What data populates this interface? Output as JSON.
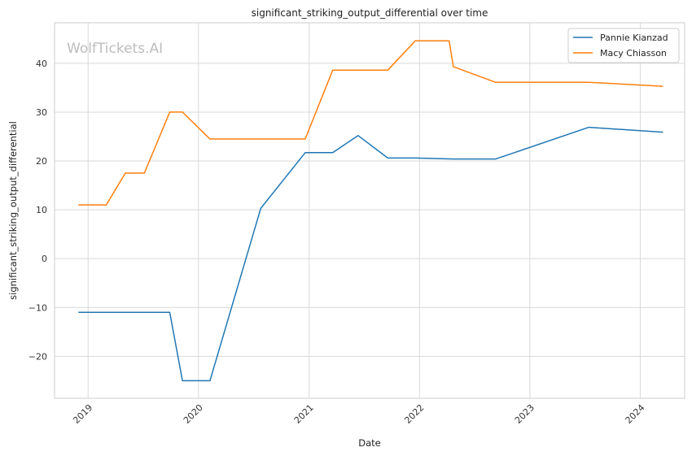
{
  "chart_data": {
    "type": "line",
    "title": "significant_striking_output_differential over time",
    "xlabel": "Date",
    "ylabel": "significant_striking_output_differential",
    "watermark": "WolfTickets.AI",
    "x_ticks": [
      "2019",
      "2020",
      "2021",
      "2022",
      "2023",
      "2024"
    ],
    "y_ticks": [
      -20,
      -10,
      0,
      10,
      20,
      30,
      40
    ],
    "xlim": [
      "2018-09-12",
      "2024-05-27"
    ],
    "ylim": [
      -28.6,
      48.3
    ],
    "grid": true,
    "legend_position": "top-right",
    "series": [
      {
        "name": "Pannie Kianzad",
        "color": "#1f77b4",
        "points": [
          {
            "x": "2018-11-30",
            "y": -11.0
          },
          {
            "x": "2019-09-28",
            "y": -11.0
          },
          {
            "x": "2019-11-09",
            "y": -25.0
          },
          {
            "x": "2020-02-08",
            "y": -25.0
          },
          {
            "x": "2020-07-25",
            "y": 10.3
          },
          {
            "x": "2020-12-19",
            "y": 21.7
          },
          {
            "x": "2021-03-20",
            "y": 21.7
          },
          {
            "x": "2021-06-12",
            "y": 25.2
          },
          {
            "x": "2021-09-18",
            "y": 20.6
          },
          {
            "x": "2021-12-18",
            "y": 20.6
          },
          {
            "x": "2022-04-23",
            "y": 20.4
          },
          {
            "x": "2022-09-10",
            "y": 20.4
          },
          {
            "x": "2023-07-15",
            "y": 26.9
          },
          {
            "x": "2024-03-16",
            "y": 25.9
          }
        ]
      },
      {
        "name": "Macy Chiasson",
        "color": "#ff7f0e",
        "points": [
          {
            "x": "2018-11-30",
            "y": 11.0
          },
          {
            "x": "2019-03-02",
            "y": 11.0
          },
          {
            "x": "2019-05-04",
            "y": 17.5
          },
          {
            "x": "2019-07-06",
            "y": 17.5
          },
          {
            "x": "2019-09-28",
            "y": 30.0
          },
          {
            "x": "2019-11-09",
            "y": 30.0
          },
          {
            "x": "2020-02-08",
            "y": 24.5
          },
          {
            "x": "2020-12-19",
            "y": 24.5
          },
          {
            "x": "2021-03-20",
            "y": 38.6
          },
          {
            "x": "2021-09-18",
            "y": 38.6
          },
          {
            "x": "2021-12-18",
            "y": 44.6
          },
          {
            "x": "2022-04-09",
            "y": 44.6
          },
          {
            "x": "2022-04-23",
            "y": 39.3
          },
          {
            "x": "2022-09-10",
            "y": 36.1
          },
          {
            "x": "2023-07-15",
            "y": 36.1
          },
          {
            "x": "2024-03-16",
            "y": 35.3
          }
        ]
      }
    ]
  }
}
